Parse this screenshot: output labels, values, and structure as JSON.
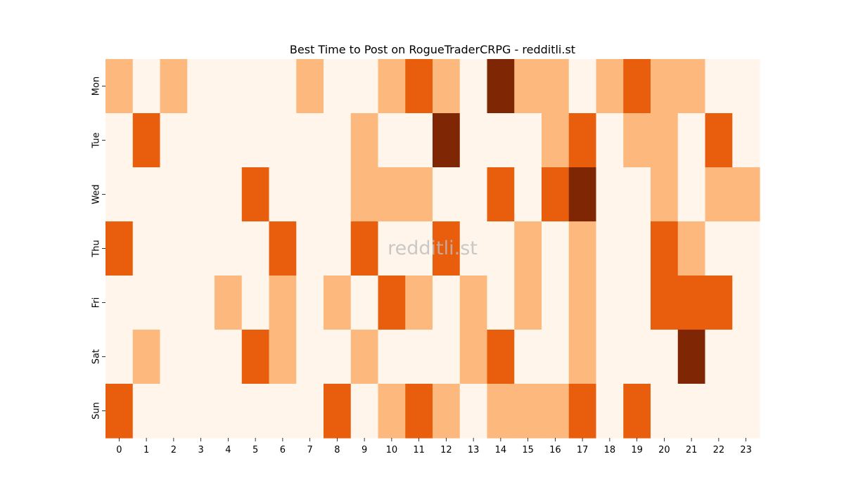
{
  "chart_data": {
    "type": "heatmap",
    "title": "Best Time to Post on RogueTraderCRPG - redditli.st",
    "watermark": "redditli.st",
    "xlabel": "",
    "ylabel": "",
    "x_categories": [
      "0",
      "1",
      "2",
      "3",
      "4",
      "5",
      "6",
      "7",
      "8",
      "9",
      "10",
      "11",
      "12",
      "13",
      "14",
      "15",
      "16",
      "17",
      "18",
      "19",
      "20",
      "21",
      "22",
      "23"
    ],
    "y_categories": [
      "Mon",
      "Tue",
      "Wed",
      "Thu",
      "Fri",
      "Sat",
      "Sun"
    ],
    "values": [
      [
        1,
        0,
        1,
        0,
        0,
        0,
        0,
        1,
        0,
        0,
        1,
        2,
        1,
        0,
        3,
        1,
        1,
        0,
        1,
        2,
        1,
        1,
        0,
        0
      ],
      [
        0,
        2,
        0,
        0,
        0,
        0,
        0,
        0,
        0,
        1,
        0,
        0,
        3,
        0,
        0,
        0,
        1,
        2,
        0,
        1,
        1,
        0,
        2,
        0
      ],
      [
        0,
        0,
        0,
        0,
        0,
        2,
        0,
        0,
        0,
        1,
        1,
        1,
        0,
        0,
        2,
        0,
        2,
        3,
        0,
        0,
        1,
        0,
        1,
        1
      ],
      [
        2,
        0,
        0,
        0,
        0,
        0,
        2,
        0,
        0,
        2,
        0,
        0,
        2,
        0,
        0,
        1,
        0,
        1,
        0,
        0,
        2,
        1,
        0,
        0
      ],
      [
        0,
        0,
        0,
        0,
        1,
        0,
        1,
        0,
        1,
        0,
        2,
        1,
        0,
        1,
        0,
        1,
        0,
        1,
        0,
        0,
        2,
        2,
        2,
        0
      ],
      [
        0,
        1,
        0,
        0,
        0,
        2,
        1,
        0,
        0,
        1,
        0,
        0,
        0,
        1,
        2,
        0,
        0,
        1,
        0,
        0,
        0,
        3,
        0,
        0
      ],
      [
        2,
        0,
        0,
        0,
        0,
        0,
        0,
        0,
        2,
        0,
        1,
        2,
        1,
        0,
        1,
        1,
        1,
        2,
        0,
        2,
        0,
        0,
        0,
        0
      ]
    ],
    "colormap": "Oranges",
    "level_colors": [
      "#fff5eb",
      "#fdb97d",
      "#e95e0d",
      "#7f2704"
    ],
    "legend": "none",
    "grid": false
  }
}
